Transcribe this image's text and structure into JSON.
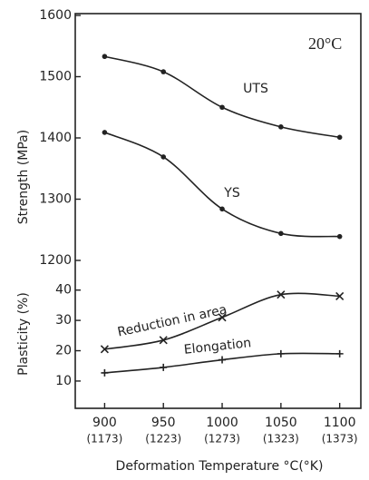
{
  "chart_data": [
    {
      "type": "line",
      "ylabel": "Strength (MPa)",
      "annotation": "20°C",
      "x": [
        900,
        950,
        1000,
        1050,
        1100
      ],
      "xlim": [
        875,
        1118
      ],
      "ylim": [
        1200,
        1600
      ],
      "yticks": [
        1200,
        1300,
        1400,
        1500,
        1600
      ],
      "series": [
        {
          "name": "UTS",
          "marker": "dot",
          "values": [
            1533,
            1508,
            1450,
            1418,
            1401
          ]
        },
        {
          "name": "YS",
          "marker": "dot",
          "values": [
            1409,
            1369,
            1284,
            1244,
            1239
          ]
        }
      ]
    },
    {
      "type": "line",
      "ylabel": "Plasticity (%)",
      "xlabel": "Deformation Temperature °C(°K)",
      "x": [
        900,
        950,
        1000,
        1050,
        1100
      ],
      "xlim": [
        875,
        1118
      ],
      "xticks": [
        900,
        950,
        1000,
        1050,
        1100
      ],
      "xtick_sublabels": [
        "(1173)",
        "(1223)",
        "(1273)",
        "(1323)",
        "(1373)"
      ],
      "ylim": [
        1,
        45
      ],
      "yticks": [
        10,
        20,
        30,
        40
      ],
      "series": [
        {
          "name": "Reduction in area",
          "marker": "x",
          "values": [
            20.5,
            23.5,
            31,
            38.5,
            38
          ]
        },
        {
          "name": "Elongation",
          "marker": "plus",
          "values": [
            12.7,
            14.5,
            17,
            19,
            19
          ]
        }
      ]
    }
  ]
}
